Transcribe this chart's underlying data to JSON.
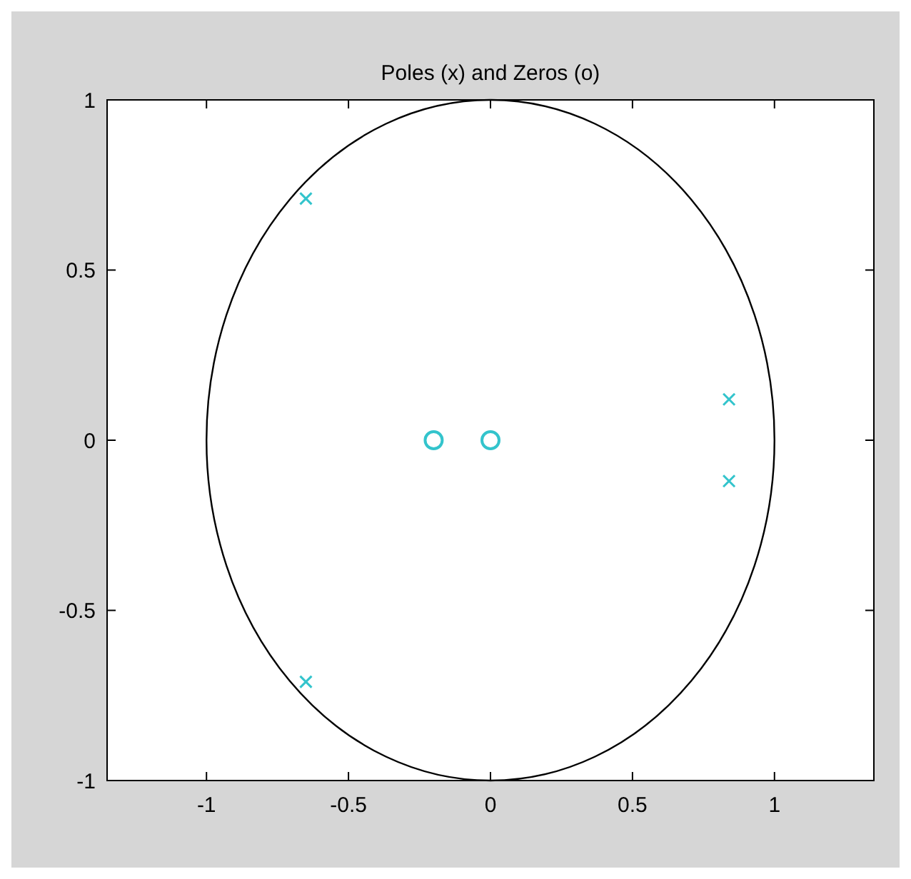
{
  "chart_data": {
    "type": "scatter",
    "title": "Poles (x) and Zeros (o)",
    "xlim": [
      -1.35,
      1.35
    ],
    "ylim": [
      -1,
      1
    ],
    "xticks": [
      -1,
      -0.5,
      0,
      0.5,
      1
    ],
    "yticks": [
      -1,
      -0.5,
      0,
      0.5,
      1
    ],
    "grid": false,
    "series": [
      {
        "color": "#33c4cc",
        "marker": "cross",
        "x": [
          -0.65,
          -0.65,
          0.84,
          0.84
        ],
        "values": [
          0.71,
          -0.71,
          0.12,
          -0.12
        ]
      },
      {
        "color": "#33c4cc",
        "marker": "circle",
        "x": [
          -0.2,
          0
        ],
        "values": [
          0,
          0
        ]
      }
    ]
  }
}
